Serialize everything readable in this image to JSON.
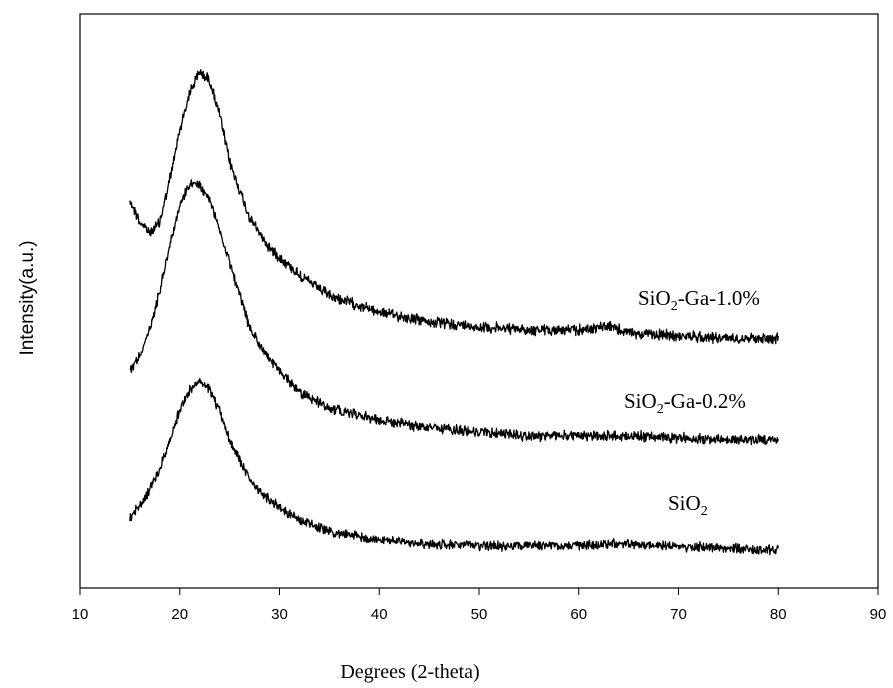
{
  "chart_data": {
    "type": "line",
    "title": "",
    "xlabel": "Degrees (2-theta)",
    "ylabel": "Intensity(a.u.)",
    "xlim": [
      10,
      90
    ],
    "xticks": [
      10,
      20,
      30,
      40,
      50,
      60,
      70,
      80,
      90
    ],
    "yticks_shown": false,
    "grid": false,
    "legend": "none",
    "line_color": "#000000",
    "series": [
      {
        "label_main": "SiO",
        "label_sub": "2",
        "label_rest": "-Ga-1.0%",
        "peak_x": 22.2,
        "noise": 4.2,
        "points": [
          [
            15,
            200
          ],
          [
            16,
            222
          ],
          [
            17,
            233
          ],
          [
            18,
            222
          ],
          [
            19,
            180
          ],
          [
            20,
            130
          ],
          [
            21,
            92
          ],
          [
            22,
            72
          ],
          [
            23,
            80
          ],
          [
            24,
            115
          ],
          [
            25,
            162
          ],
          [
            27,
            218
          ],
          [
            29,
            248
          ],
          [
            32,
            275
          ],
          [
            35,
            296
          ],
          [
            40,
            312
          ],
          [
            45,
            322
          ],
          [
            50,
            327
          ],
          [
            55,
            330
          ],
          [
            60,
            330
          ],
          [
            63,
            326
          ],
          [
            65,
            333
          ],
          [
            70,
            336
          ],
          [
            75,
            338
          ],
          [
            80,
            338
          ]
        ]
      },
      {
        "label_main": "SiO",
        "label_sub": "2",
        "label_rest": "-Ga-0.2%",
        "peak_x": 21.8,
        "noise": 4.0,
        "points": [
          [
            15,
            370
          ],
          [
            16,
            355
          ],
          [
            17,
            330
          ],
          [
            18,
            290
          ],
          [
            19,
            245
          ],
          [
            20,
            205
          ],
          [
            21,
            185
          ],
          [
            22,
            185
          ],
          [
            23,
            200
          ],
          [
            24,
            230
          ],
          [
            25,
            262
          ],
          [
            27,
            328
          ],
          [
            29,
            360
          ],
          [
            32,
            392
          ],
          [
            35,
            408
          ],
          [
            40,
            420
          ],
          [
            45,
            428
          ],
          [
            50,
            432
          ],
          [
            55,
            436
          ],
          [
            60,
            436
          ],
          [
            65,
            436
          ],
          [
            70,
            438
          ],
          [
            75,
            440
          ],
          [
            80,
            440
          ]
        ]
      },
      {
        "label_main": "SiO",
        "label_sub": "2",
        "label_rest": "",
        "peak_x": 22.4,
        "noise": 3.8,
        "points": [
          [
            15,
            518
          ],
          [
            16,
            505
          ],
          [
            17,
            490
          ],
          [
            18,
            470
          ],
          [
            19,
            440
          ],
          [
            20,
            410
          ],
          [
            21,
            390
          ],
          [
            22,
            382
          ],
          [
            23,
            390
          ],
          [
            24,
            412
          ],
          [
            25,
            440
          ],
          [
            27,
            480
          ],
          [
            29,
            500
          ],
          [
            32,
            520
          ],
          [
            35,
            532
          ],
          [
            40,
            540
          ],
          [
            45,
            544
          ],
          [
            50,
            546
          ],
          [
            55,
            546
          ],
          [
            60,
            545
          ],
          [
            65,
            544
          ],
          [
            70,
            546
          ],
          [
            75,
            548
          ],
          [
            80,
            550
          ]
        ]
      }
    ]
  }
}
